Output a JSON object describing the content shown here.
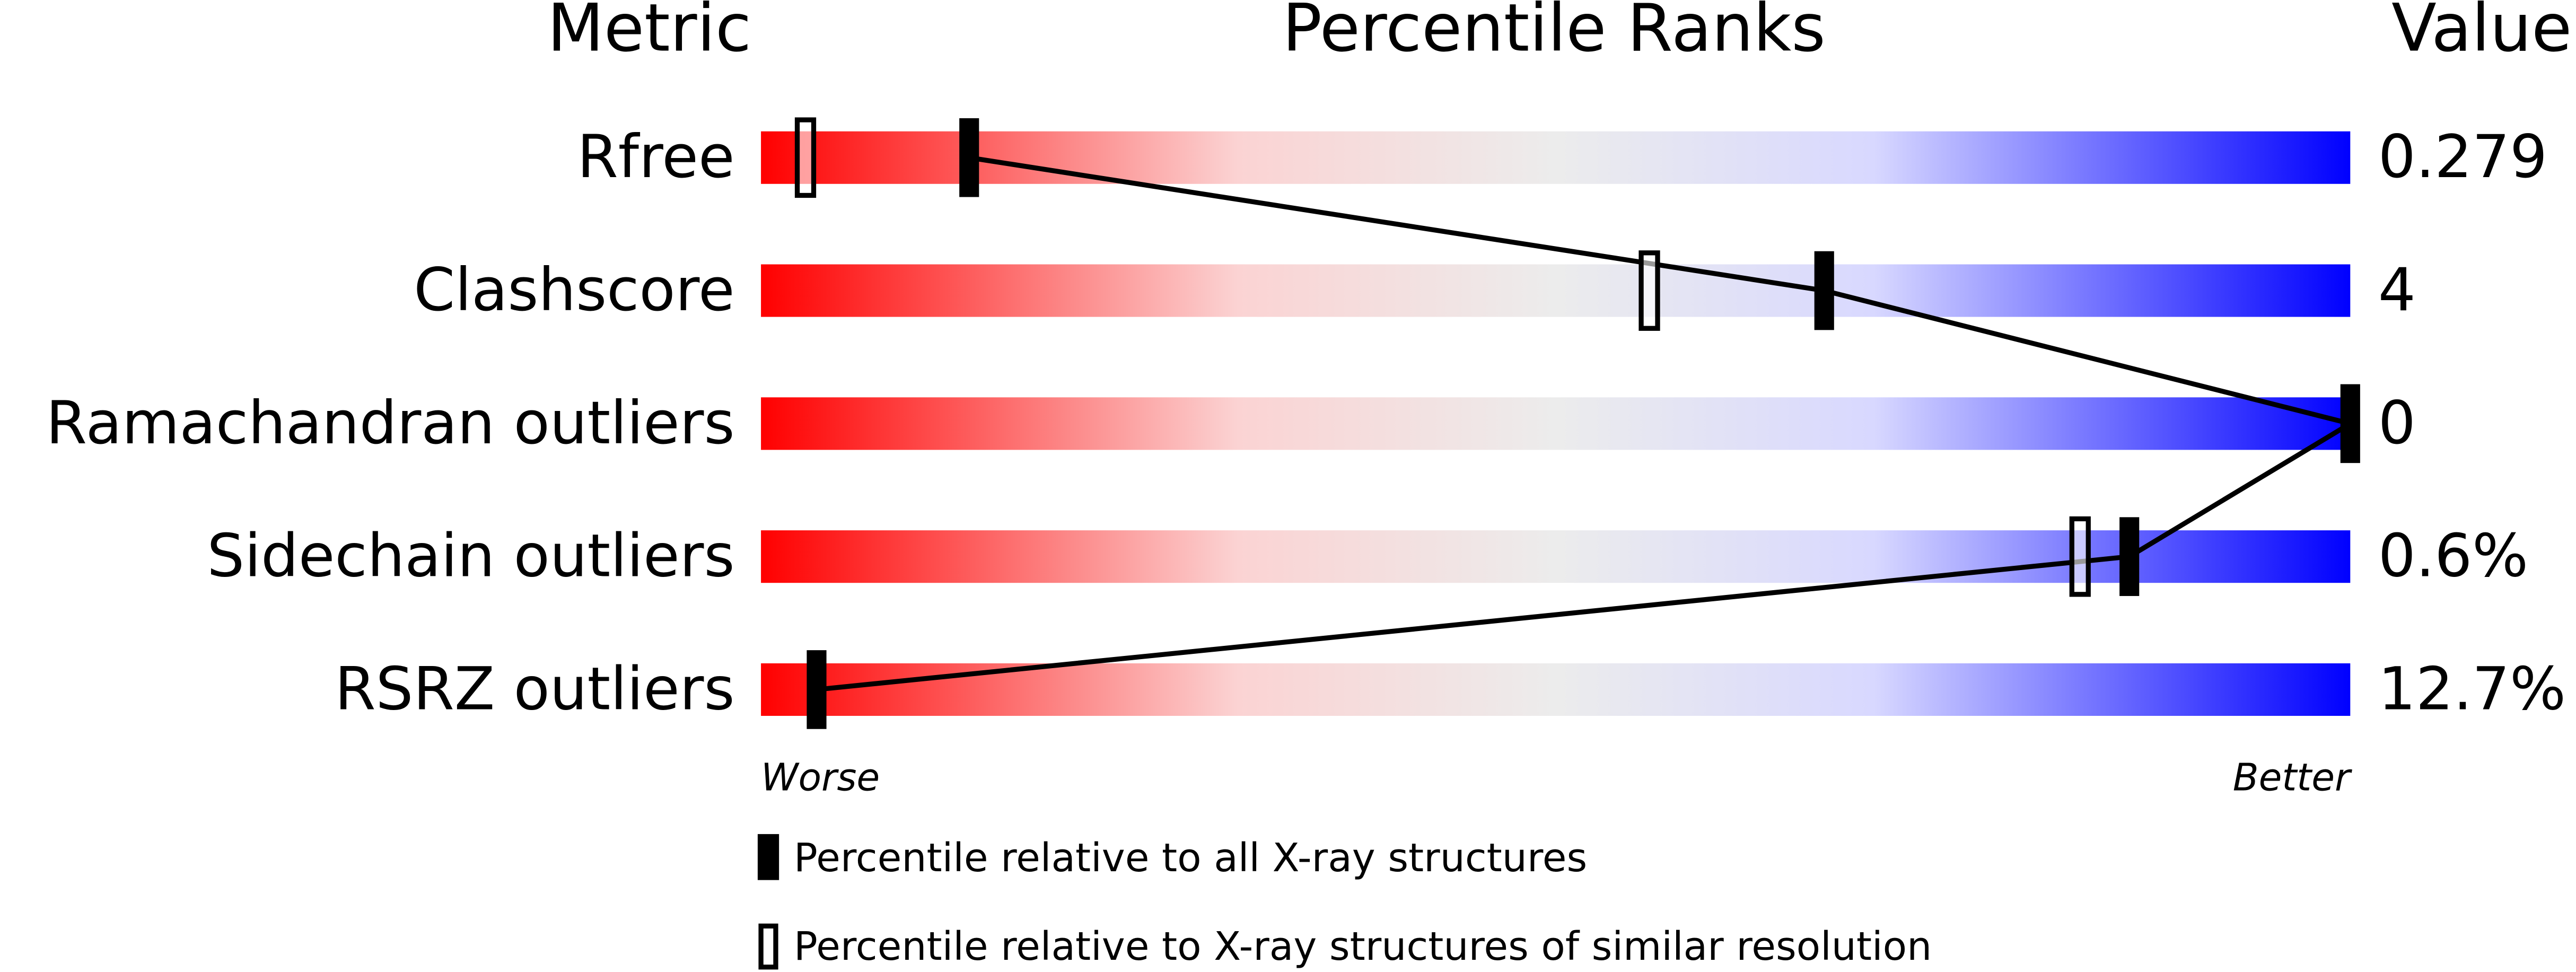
{
  "chart_data": {
    "type": "percentile",
    "title": "Percentile Ranks",
    "metric_header": "Metric",
    "value_header": "Value",
    "categories": [
      "Rfree",
      "Clashscore",
      "Ramachandran outliers",
      "Sidechain outliers",
      "RSRZ outliers"
    ],
    "metric_values": [
      "0.279",
      "4",
      "0",
      "0.6%",
      "12.7%"
    ],
    "xlim": [
      0,
      100
    ],
    "low_label": "Worse",
    "high_label": "Better",
    "series": [
      {
        "name": "Percentile relative to all X-ray structures",
        "color": "#000000",
        "filled": true,
        "values": [
          13.1,
          66.9,
          100,
          86.1,
          3.5
        ]
      },
      {
        "name": "Percentile relative to X-ray structures of similar resolution",
        "color": "#000000",
        "filled": false,
        "values": [
          2.8,
          55.9,
          null,
          83.0,
          null
        ]
      }
    ]
  }
}
